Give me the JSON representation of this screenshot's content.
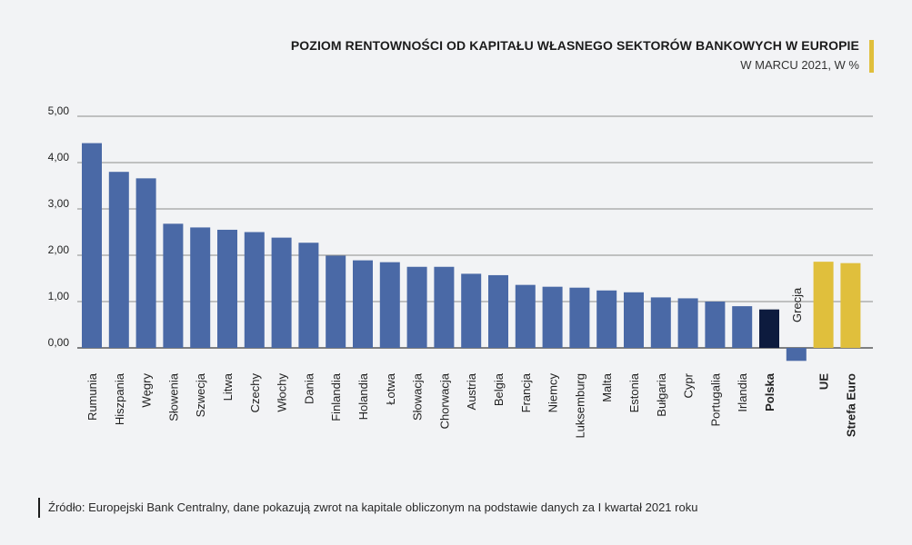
{
  "colors": {
    "bar": "#4a69a6",
    "highlight": "#0d1b3e",
    "aggregate": "#e0bf3c",
    "grid": "#8c8c8c",
    "accent": "#e0bf3c"
  },
  "header": {
    "title": "POZIOM RENTOWNOŚCI OD KAPITAŁU WŁASNEGO SEKTORÓW BANKOWYCH W EUROPIE",
    "subtitle": "W MARCU 2021, W %"
  },
  "footer": {
    "source": "Źródło: Europejski Bank Centralny, dane pokazują zwrot na kapitale obliczonym na podstawie danych za I kwartał 2021 roku"
  },
  "chart_data": {
    "type": "bar",
    "title": "POZIOM RENTOWNOŚCI OD KAPITAŁU WŁASNEGO SEKTORÓW BANKOWYCH W EUROPIE",
    "subtitle": "W MARCU 2021, W %",
    "categories": [
      "Rumunia",
      "Hiszpania",
      "Węgry",
      "Słowenia",
      "Szwecja",
      "Litwa",
      "Czechy",
      "Włochy",
      "Dania",
      "Finlandia",
      "Holandia",
      "Łotwa",
      "Słowacja",
      "Chorwacja",
      "Austria",
      "Belgia",
      "Francja",
      "Niemcy",
      "Luksemburg",
      "Malta",
      "Estonia",
      "Bułgaria",
      "Cypr",
      "Portugalia",
      "Irlandia",
      "Polska",
      "Grecja",
      "UE",
      "Strefa Euro"
    ],
    "values": [
      4.42,
      3.8,
      3.66,
      2.68,
      2.6,
      2.55,
      2.5,
      2.38,
      2.27,
      1.99,
      1.89,
      1.85,
      1.75,
      1.75,
      1.6,
      1.57,
      1.36,
      1.32,
      1.3,
      1.24,
      1.2,
      1.09,
      1.07,
      1.0,
      0.9,
      0.83,
      -0.28,
      1.86,
      1.83
    ],
    "groups": [
      "country",
      "country",
      "country",
      "country",
      "country",
      "country",
      "country",
      "country",
      "country",
      "country",
      "country",
      "country",
      "country",
      "country",
      "country",
      "country",
      "country",
      "country",
      "country",
      "country",
      "country",
      "country",
      "country",
      "country",
      "country",
      "highlight",
      "country",
      "aggregate",
      "aggregate"
    ],
    "bold_labels": [
      "Polska",
      "UE",
      "Strefa Euro"
    ],
    "inside_labels": [
      "Grecja"
    ],
    "yticks": [
      "0,00",
      "1,00",
      "2,00",
      "3,00",
      "4,00",
      "5,00"
    ],
    "ylim": [
      0,
      5
    ],
    "grid": true,
    "xlabel": "",
    "ylabel": ""
  }
}
